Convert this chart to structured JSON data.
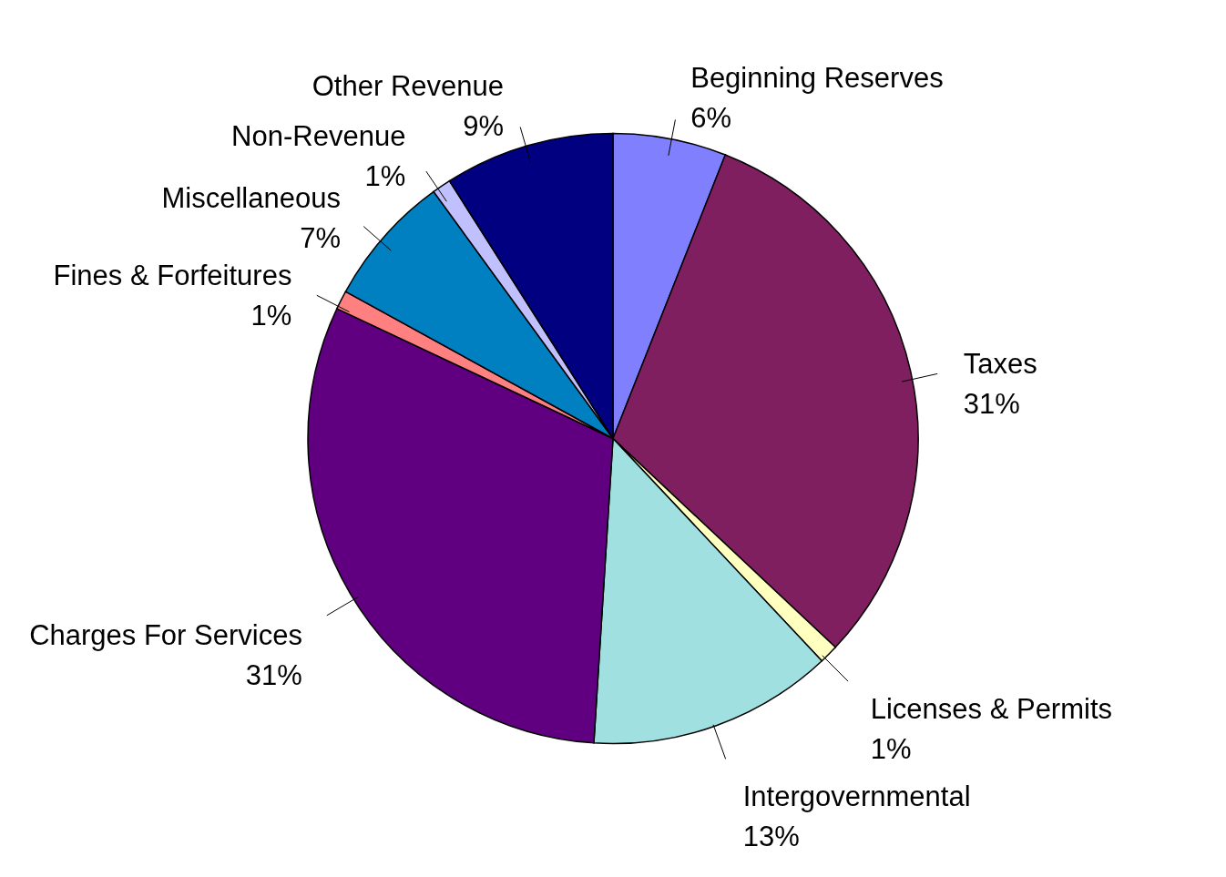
{
  "chart_data": {
    "type": "pie",
    "categories": [
      "Beginning Reserves",
      "Taxes",
      "Licenses & Permits",
      "Intergovernmental",
      "Charges For Services",
      "Fines & Forfeitures",
      "Miscellaneous",
      "Non-Revenue",
      "Other Revenue"
    ],
    "values": [
      6,
      31,
      1,
      13,
      31,
      1,
      7,
      1,
      9
    ],
    "value_labels": [
      "6%",
      "31%",
      "1%",
      "13%",
      "31%",
      "1%",
      "7%",
      "1%",
      "9%"
    ],
    "colors": [
      "#8080ff",
      "#7f1f5f",
      "#ffffc0",
      "#a0e0e0",
      "#600080",
      "#ff8080",
      "#0080c0",
      "#c0c0ff",
      "#000080"
    ]
  }
}
